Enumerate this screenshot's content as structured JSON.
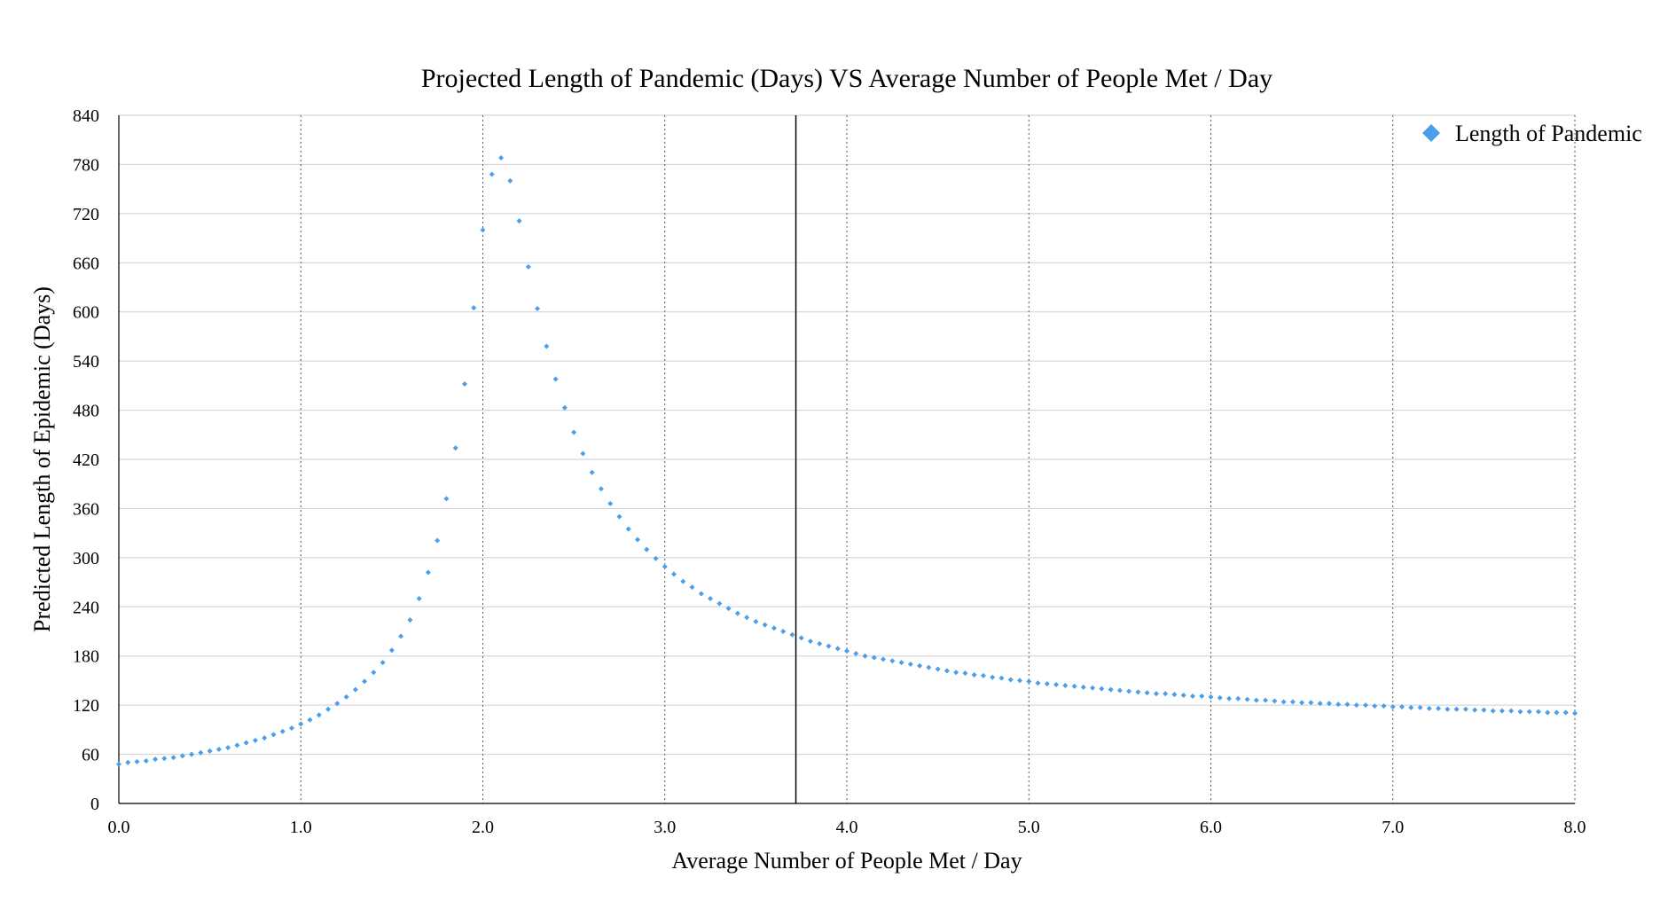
{
  "chart_data": {
    "type": "scatter",
    "title": "Projected Length of Pandemic (Days) VS Average Number of People Met / Day",
    "xlabel": "Average Number of People Met / Day",
    "ylabel": "Predicted Length of Epidemic (Days)",
    "xlim": [
      0,
      8
    ],
    "ylim": [
      0,
      840
    ],
    "x_ticks": [
      "0.0",
      "1.0",
      "2.0",
      "3.0",
      "4.0",
      "5.0",
      "6.0",
      "7.0",
      "8.0"
    ],
    "y_ticks": [
      "0",
      "60",
      "120",
      "180",
      "240",
      "300",
      "360",
      "420",
      "480",
      "540",
      "600",
      "660",
      "720",
      "780",
      "840"
    ],
    "grid": {
      "horizontal": "solid",
      "vertical": "dotted"
    },
    "reference_line_x": 3.72,
    "legend_position": "top-right",
    "series": [
      {
        "name": "Length of Pandemic",
        "color": "#4a9eea",
        "marker": "diamond",
        "points": [
          [
            0.0,
            48
          ],
          [
            0.05,
            50
          ],
          [
            0.1,
            51
          ],
          [
            0.15,
            52
          ],
          [
            0.2,
            54
          ],
          [
            0.25,
            55
          ],
          [
            0.3,
            56
          ],
          [
            0.35,
            58
          ],
          [
            0.4,
            60
          ],
          [
            0.45,
            62
          ],
          [
            0.5,
            64
          ],
          [
            0.55,
            66
          ],
          [
            0.6,
            68
          ],
          [
            0.65,
            71
          ],
          [
            0.7,
            74
          ],
          [
            0.75,
            77
          ],
          [
            0.8,
            80
          ],
          [
            0.85,
            84
          ],
          [
            0.9,
            88
          ],
          [
            0.95,
            92
          ],
          [
            1.0,
            97
          ],
          [
            1.05,
            102
          ],
          [
            1.1,
            108
          ],
          [
            1.15,
            115
          ],
          [
            1.2,
            122
          ],
          [
            1.25,
            130
          ],
          [
            1.3,
            139
          ],
          [
            1.35,
            149
          ],
          [
            1.4,
            160
          ],
          [
            1.45,
            172
          ],
          [
            1.5,
            187
          ],
          [
            1.55,
            204
          ],
          [
            1.6,
            224
          ],
          [
            1.65,
            250
          ],
          [
            1.7,
            282
          ],
          [
            1.75,
            321
          ],
          [
            1.8,
            372
          ],
          [
            1.85,
            434
          ],
          [
            1.9,
            512
          ],
          [
            1.95,
            605
          ],
          [
            2.0,
            700
          ],
          [
            2.05,
            768
          ],
          [
            2.1,
            788
          ],
          [
            2.15,
            760
          ],
          [
            2.2,
            711
          ],
          [
            2.25,
            655
          ],
          [
            2.3,
            604
          ],
          [
            2.35,
            558
          ],
          [
            2.4,
            518
          ],
          [
            2.45,
            483
          ],
          [
            2.5,
            453
          ],
          [
            2.55,
            427
          ],
          [
            2.6,
            404
          ],
          [
            2.65,
            384
          ],
          [
            2.7,
            366
          ],
          [
            2.75,
            350
          ],
          [
            2.8,
            335
          ],
          [
            2.85,
            322
          ],
          [
            2.9,
            310
          ],
          [
            2.95,
            299
          ],
          [
            3.0,
            289
          ],
          [
            3.05,
            280
          ],
          [
            3.1,
            271
          ],
          [
            3.15,
            264
          ],
          [
            3.2,
            256
          ],
          [
            3.25,
            250
          ],
          [
            3.3,
            244
          ],
          [
            3.35,
            238
          ],
          [
            3.4,
            232
          ],
          [
            3.45,
            227
          ],
          [
            3.5,
            222
          ],
          [
            3.55,
            218
          ],
          [
            3.6,
            214
          ],
          [
            3.65,
            210
          ],
          [
            3.7,
            206
          ],
          [
            3.75,
            202
          ],
          [
            3.8,
            198
          ],
          [
            3.85,
            195
          ],
          [
            3.9,
            192
          ],
          [
            3.95,
            189
          ],
          [
            4.0,
            186
          ],
          [
            4.05,
            183
          ],
          [
            4.1,
            180
          ],
          [
            4.15,
            178
          ],
          [
            4.2,
            176
          ],
          [
            4.25,
            174
          ],
          [
            4.3,
            172
          ],
          [
            4.35,
            170
          ],
          [
            4.4,
            168
          ],
          [
            4.45,
            166
          ],
          [
            4.5,
            164
          ],
          [
            4.55,
            162
          ],
          [
            4.6,
            160
          ],
          [
            4.65,
            159
          ],
          [
            4.7,
            157
          ],
          [
            4.75,
            156
          ],
          [
            4.8,
            154
          ],
          [
            4.85,
            153
          ],
          [
            4.9,
            151
          ],
          [
            4.95,
            150
          ],
          [
            5.0,
            149
          ],
          [
            5.05,
            147
          ],
          [
            5.1,
            146
          ],
          [
            5.15,
            145
          ],
          [
            5.2,
            144
          ],
          [
            5.25,
            143
          ],
          [
            5.3,
            142
          ],
          [
            5.35,
            141
          ],
          [
            5.4,
            140
          ],
          [
            5.45,
            139
          ],
          [
            5.5,
            138
          ],
          [
            5.55,
            137
          ],
          [
            5.6,
            136
          ],
          [
            5.65,
            135
          ],
          [
            5.7,
            134
          ],
          [
            5.75,
            134
          ],
          [
            5.8,
            133
          ],
          [
            5.85,
            132
          ],
          [
            5.9,
            131
          ],
          [
            5.95,
            131
          ],
          [
            6.0,
            130
          ],
          [
            6.05,
            129
          ],
          [
            6.1,
            128
          ],
          [
            6.15,
            128
          ],
          [
            6.2,
            127
          ],
          [
            6.25,
            126
          ],
          [
            6.3,
            126
          ],
          [
            6.35,
            125
          ],
          [
            6.4,
            124
          ],
          [
            6.45,
            124
          ],
          [
            6.5,
            123
          ],
          [
            6.55,
            123
          ],
          [
            6.6,
            122
          ],
          [
            6.65,
            122
          ],
          [
            6.7,
            121
          ],
          [
            6.75,
            121
          ],
          [
            6.8,
            120
          ],
          [
            6.85,
            120
          ],
          [
            6.9,
            119
          ],
          [
            6.95,
            119
          ],
          [
            7.0,
            118
          ],
          [
            7.05,
            118
          ],
          [
            7.1,
            117
          ],
          [
            7.15,
            117
          ],
          [
            7.2,
            116
          ],
          [
            7.25,
            116
          ],
          [
            7.3,
            115
          ],
          [
            7.35,
            115
          ],
          [
            7.4,
            115
          ],
          [
            7.45,
            114
          ],
          [
            7.5,
            114
          ],
          [
            7.55,
            113
          ],
          [
            7.6,
            113
          ],
          [
            7.65,
            113
          ],
          [
            7.7,
            112
          ],
          [
            7.75,
            112
          ],
          [
            7.8,
            112
          ],
          [
            7.85,
            111
          ],
          [
            7.9,
            111
          ],
          [
            7.95,
            111
          ],
          [
            8.0,
            110
          ]
        ]
      }
    ]
  }
}
